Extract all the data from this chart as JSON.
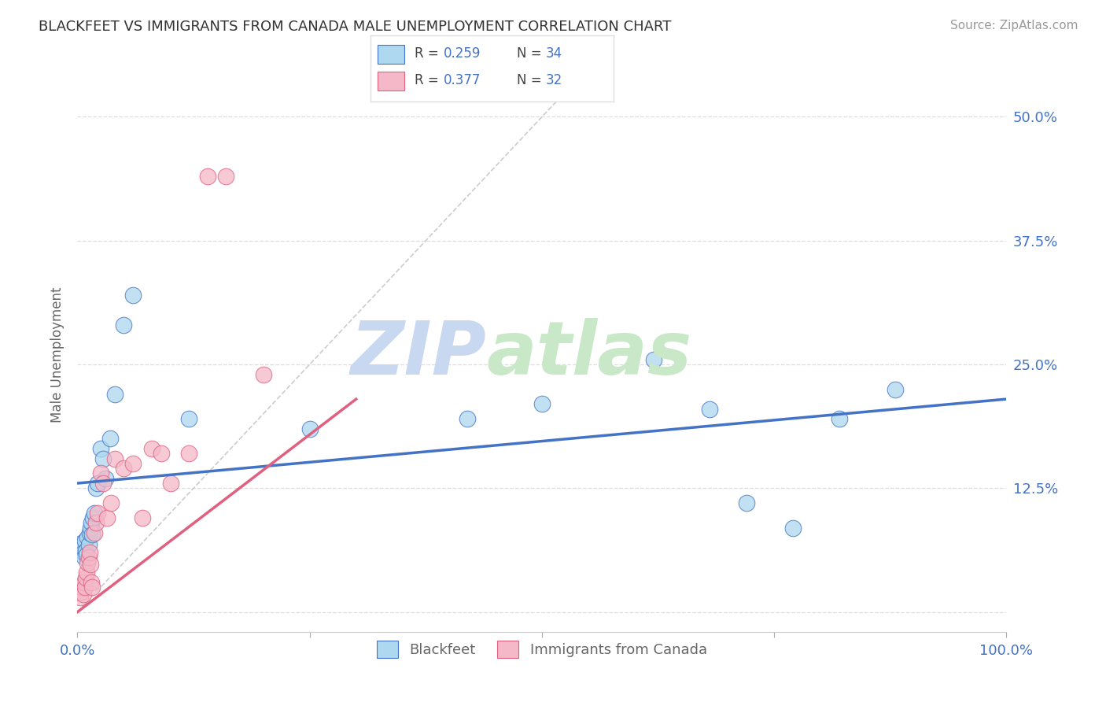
{
  "title": "BLACKFEET VS IMMIGRANTS FROM CANADA MALE UNEMPLOYMENT CORRELATION CHART",
  "source": "Source: ZipAtlas.com",
  "ylabel": "Male Unemployment",
  "ytick_labels": [
    "",
    "12.5%",
    "25.0%",
    "37.5%",
    "50.0%"
  ],
  "ytick_values": [
    0,
    0.125,
    0.25,
    0.375,
    0.5
  ],
  "xlim": [
    0,
    1.0
  ],
  "ylim": [
    -0.02,
    0.54
  ],
  "legend_label1": "Blackfeet",
  "legend_label2": "Immigrants from Canada",
  "R1": 0.259,
  "N1": 34,
  "R2": 0.377,
  "N2": 32,
  "color_blue": "#ADD8F0",
  "color_pink": "#F4B8C8",
  "line_color_blue": "#4472C4",
  "line_color_pink": "#E06080",
  "diagonal_color": "#CCCCCC",
  "background_color": "#FFFFFF",
  "grid_color": "#DDDDDD",
  "blackfeet_x": [
    0.003,
    0.005,
    0.006,
    0.007,
    0.008,
    0.009,
    0.01,
    0.011,
    0.012,
    0.013,
    0.014,
    0.015,
    0.016,
    0.017,
    0.018,
    0.02,
    0.022,
    0.025,
    0.028,
    0.03,
    0.035,
    0.04,
    0.05,
    0.06,
    0.12,
    0.25,
    0.42,
    0.5,
    0.62,
    0.68,
    0.72,
    0.77,
    0.82,
    0.88
  ],
  "blackfeet_y": [
    0.065,
    0.07,
    0.06,
    0.055,
    0.072,
    0.062,
    0.058,
    0.075,
    0.068,
    0.08,
    0.085,
    0.09,
    0.078,
    0.095,
    0.1,
    0.125,
    0.13,
    0.165,
    0.155,
    0.135,
    0.175,
    0.22,
    0.29,
    0.32,
    0.195,
    0.185,
    0.195,
    0.21,
    0.255,
    0.205,
    0.11,
    0.085,
    0.195,
    0.225
  ],
  "canada_x": [
    0.003,
    0.004,
    0.005,
    0.006,
    0.007,
    0.008,
    0.009,
    0.01,
    0.011,
    0.012,
    0.013,
    0.014,
    0.015,
    0.016,
    0.018,
    0.02,
    0.022,
    0.025,
    0.028,
    0.032,
    0.036,
    0.04,
    0.05,
    0.06,
    0.07,
    0.08,
    0.09,
    0.1,
    0.12,
    0.14,
    0.16,
    0.2
  ],
  "canada_y": [
    0.015,
    0.02,
    0.025,
    0.018,
    0.03,
    0.025,
    0.035,
    0.04,
    0.05,
    0.055,
    0.06,
    0.048,
    0.03,
    0.025,
    0.08,
    0.09,
    0.1,
    0.14,
    0.13,
    0.095,
    0.11,
    0.155,
    0.145,
    0.15,
    0.095,
    0.165,
    0.16,
    0.13,
    0.16,
    0.44,
    0.44,
    0.24
  ],
  "blue_line_x0": 0.0,
  "blue_line_x1": 1.0,
  "blue_line_y0": 0.13,
  "blue_line_y1": 0.215,
  "pink_line_x0": 0.0,
  "pink_line_x1": 0.3,
  "pink_line_y0": 0.0,
  "pink_line_y1": 0.215
}
